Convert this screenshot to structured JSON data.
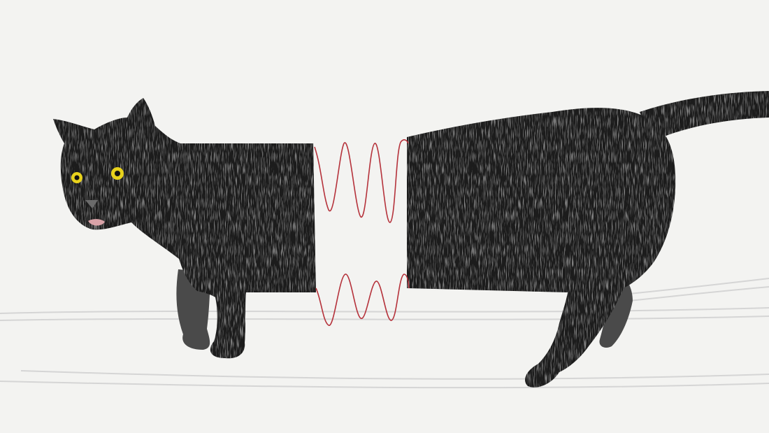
{
  "illustration": {
    "subject": "split-black-cat-icon",
    "colors": {
      "background": "#f3f3f1",
      "fur": "#1e1e1e",
      "fur_shadow": "#4a4a4a",
      "fur_highlight": "#8a8a8a",
      "eye": "#e8d21c",
      "pupil": "#111111",
      "nose": "#6b6b6b",
      "mouth": "#d9a3a8",
      "thread": "#b5323b",
      "floor_lines": "#d2d2d2",
      "grain": "#2a2a2a"
    }
  }
}
